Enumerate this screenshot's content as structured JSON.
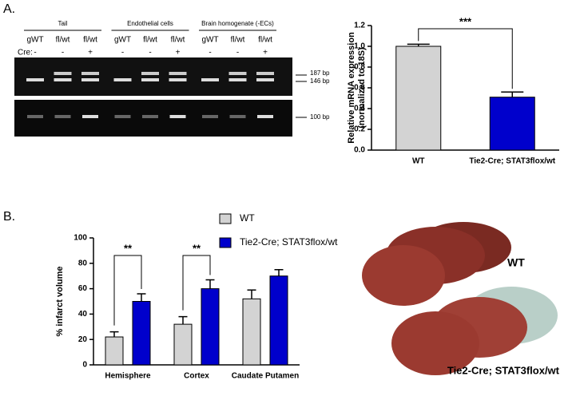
{
  "panels": {
    "a": "A.",
    "b": "B."
  },
  "gel": {
    "groups": [
      "Tail",
      "Endothelial cells",
      "Brain homogenate (-ECs)"
    ],
    "lanes": [
      "gWT",
      "fl/wt",
      "fl/wt",
      "gWT",
      "fl/wt",
      "fl/wt",
      "gWT",
      "fl/wt",
      "fl/wt"
    ],
    "cre_label": "Cre:",
    "cre": [
      "-",
      "-",
      "+",
      "-",
      "-",
      "+",
      "-",
      "-",
      "+"
    ],
    "markers": [
      "187 bp",
      "146 bp",
      "100 bp"
    ]
  },
  "brain": {
    "labels": [
      "WT",
      "Tie2-Cre; STAT3flox/wt"
    ]
  },
  "chart_data": [
    {
      "type": "bar",
      "ylabel": [
        "Relative mRNA expression",
        "(normalized to 18S)"
      ],
      "categories": [
        "WT",
        "Tie2-Cre; STAT3flox/wt"
      ],
      "values": [
        1.0,
        0.51
      ],
      "errors": [
        0.02,
        0.05
      ],
      "colors": [
        "#d3d3d3",
        "#0000cc"
      ],
      "ylim": [
        0,
        1.2
      ],
      "yticks": [
        {
          "value": 0,
          "label": "0.0"
        },
        {
          "value": 0.2,
          "label": "0.2"
        },
        {
          "value": 0.4,
          "label": "0.4"
        },
        {
          "value": 0.6,
          "label": "0.6"
        },
        {
          "value": 0.8,
          "label": "0.8"
        },
        {
          "value": 1,
          "label": "1.0"
        },
        {
          "value": 1.2,
          "label": "1.2"
        }
      ],
      "annotations": [
        "***"
      ]
    },
    {
      "type": "bar",
      "ylabel": [
        "% infarct volume"
      ],
      "categories": [
        "Hemisphere",
        "Cortex",
        "Caudate Putamen"
      ],
      "series": [
        {
          "name": "WT",
          "color": "#d3d3d3",
          "values": [
            22,
            32,
            52
          ],
          "errors": [
            4,
            6,
            7
          ]
        },
        {
          "name": "Tie2-Cre; STAT3flox/wt",
          "color": "#0000cc",
          "values": [
            50,
            60,
            70
          ],
          "errors": [
            6,
            7,
            5
          ]
        }
      ],
      "ylim": [
        0,
        100
      ],
      "yticks": [
        0,
        20,
        40,
        60,
        80,
        100
      ],
      "annotations": [
        "**",
        "**"
      ]
    }
  ]
}
